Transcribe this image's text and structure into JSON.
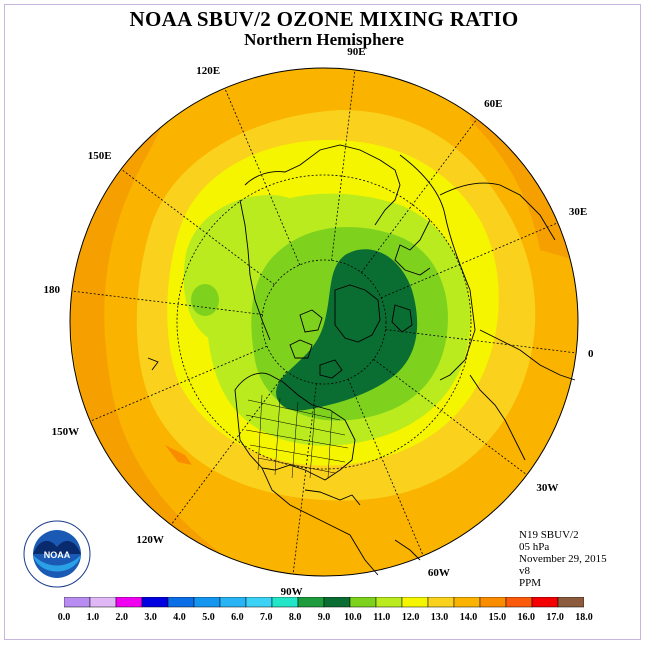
{
  "header": {
    "title": "NOAA SBUV/2 OZONE MIXING RATIO",
    "subtitle": "Northern Hemisphere"
  },
  "map": {
    "projection": "north polar stereographic",
    "longitude_labels": [
      {
        "id": "90E",
        "text": "90E",
        "lon": 90
      },
      {
        "id": "60E",
        "text": "60E",
        "lon": 60
      },
      {
        "id": "30E",
        "text": "30E",
        "lon": 30
      },
      {
        "id": "0",
        "text": "0",
        "lon": 0
      },
      {
        "id": "30W",
        "text": "30W",
        "lon": -30
      },
      {
        "id": "60W",
        "text": "60W",
        "lon": -60
      },
      {
        "id": "90W",
        "text": "90W",
        "lon": -90
      },
      {
        "id": "120W",
        "text": "120W",
        "lon": -120
      },
      {
        "id": "150W",
        "text": "150W",
        "lon": -150
      },
      {
        "id": "180",
        "text": "180",
        "lon": 180
      },
      {
        "id": "150E",
        "text": "150E",
        "lon": 150
      },
      {
        "id": "120E",
        "text": "120E",
        "lon": 120
      }
    ],
    "latitude_circles": [
      30,
      60
    ]
  },
  "info": {
    "satellite": "N19 SBUV/2",
    "level": "05 hPa",
    "date": "November 29, 2015",
    "version": "v8",
    "units": "PPM"
  },
  "logo": {
    "text": "NOAA"
  },
  "colorbar": {
    "ticks": [
      "0.0",
      "1.0",
      "2.0",
      "3.0",
      "4.0",
      "5.0",
      "6.0",
      "7.0",
      "8.0",
      "9.0",
      "10.0",
      "11.0",
      "12.0",
      "13.0",
      "14.0",
      "15.0",
      "16.0",
      "17.0",
      "18.0"
    ],
    "colors": [
      "#b88cf0",
      "#e0b8f5",
      "#f000f0",
      "#0000e0",
      "#0a6ee6",
      "#1496f0",
      "#28b4f5",
      "#3cd2f5",
      "#23e6c8",
      "#1e9b3c",
      "#0a6e32",
      "#7ed21e",
      "#b9eb1e",
      "#f5f500",
      "#fad21e",
      "#fab400",
      "#fa8c00",
      "#fa5a0a",
      "#f50000",
      "#8c5a3c"
    ]
  }
}
